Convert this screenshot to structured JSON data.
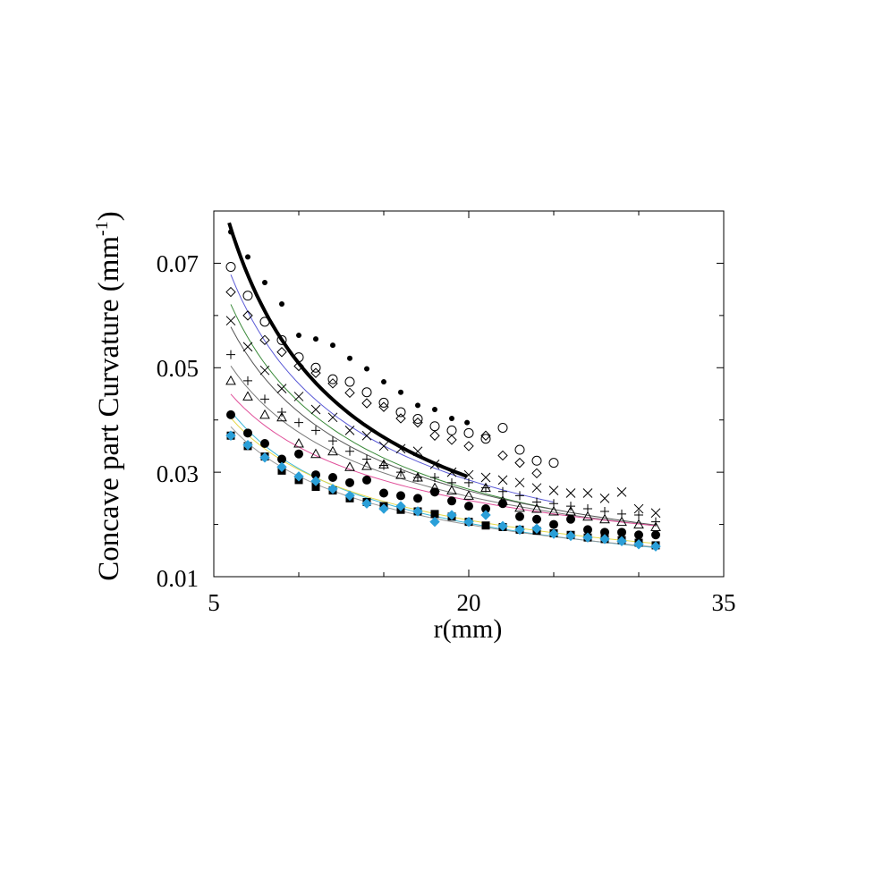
{
  "chart_data": {
    "type": "scatter",
    "title": "",
    "xlabel": "r(mm)",
    "ylabel_main": "Concave part Curvature (mm",
    "ylabel_sup": "-1",
    "ylabel_close": ")",
    "xlim": [
      5,
      35
    ],
    "ylim": [
      0.01,
      0.08
    ],
    "x_tick_labels": [
      "5",
      "20",
      "35"
    ],
    "y_tick_labels": [
      "0.01",
      "0.03",
      "0.05",
      "0.07"
    ],
    "x_ticks_major": [
      5,
      20,
      35
    ],
    "x_ticks_minor": [
      10,
      15,
      25,
      30
    ],
    "y_ticks_major": [
      0.01,
      0.03,
      0.05,
      0.07
    ],
    "y_ticks_minor": [
      0.02,
      0.04,
      0.06
    ],
    "grid": false,
    "legend": "none",
    "series": [
      {
        "marker": "dot",
        "color": "#000000",
        "fit_color": "#000000",
        "fit_width": 4,
        "x": [
          6.0,
          7.0,
          8.0,
          9.0,
          10.0,
          11.0,
          12.0,
          13.0,
          14.0,
          15.0,
          16.0,
          17.0,
          18.0,
          19.0,
          19.9
        ],
        "y": [
          0.076,
          0.0712,
          0.0663,
          0.0622,
          0.0562,
          0.0555,
          0.0543,
          0.0518,
          0.0498,
          0.0473,
          0.0453,
          0.0428,
          0.042,
          0.0403,
          0.0395
        ],
        "fit_x": [
          5.9,
          19.9
        ],
        "fit_a": 0.3245,
        "fit_b": -0.805
      },
      {
        "marker": "circle",
        "color": "#000000",
        "fit_color": "#5b5bd6",
        "fit_width": 1,
        "x": [
          6.0,
          7.0,
          8.0,
          9.0,
          10.0,
          11.0,
          12.0,
          13.0,
          14.0,
          15.0,
          16.0,
          17.0,
          18.0,
          19.0,
          20.0,
          21.0,
          22.0,
          23.0,
          24.0,
          25.0
        ],
        "y": [
          0.0693,
          0.0638,
          0.0588,
          0.0553,
          0.052,
          0.05,
          0.0478,
          0.0473,
          0.0453,
          0.0433,
          0.0415,
          0.0402,
          0.0388,
          0.038,
          0.0375,
          0.0364,
          0.0385,
          0.0343,
          0.0322,
          0.0318
        ],
        "fit_x": [
          6.0,
          25.0
        ],
        "fit_a": 0.2464,
        "fit_b": -0.72
      },
      {
        "marker": "diamond",
        "color": "#000000",
        "fit_color": "#3a8a3a",
        "fit_width": 1,
        "x": [
          6.0,
          7.0,
          8.0,
          9.0,
          10.0,
          11.0,
          12.0,
          13.0,
          14.0,
          15.0,
          16.0,
          17.0,
          18.0,
          19.0,
          20.0,
          21.0,
          22.0,
          23.0,
          24.0
        ],
        "y": [
          0.0645,
          0.06,
          0.0553,
          0.053,
          0.0503,
          0.049,
          0.047,
          0.0452,
          0.0432,
          0.0425,
          0.0403,
          0.0395,
          0.037,
          0.0362,
          0.035,
          0.037,
          0.0332,
          0.0318,
          0.0298
        ],
        "fit_x": [
          6.0,
          25.0
        ],
        "fit_a": 0.2178,
        "fit_b": -0.7
      },
      {
        "marker": "x",
        "color": "#000000",
        "fit_color": "#555555",
        "fit_width": 1,
        "x": [
          6.0,
          7.0,
          8.0,
          9.0,
          10.0,
          11.0,
          12.0,
          13.0,
          14.0,
          15.0,
          16.0,
          17.0,
          18.0,
          19.0,
          20.0,
          21.0,
          22.0,
          23.0,
          24.0,
          25.0,
          26.0,
          27.0,
          28.0,
          29.0,
          30.0,
          31.0
        ],
        "y": [
          0.059,
          0.054,
          0.0495,
          0.046,
          0.0445,
          0.042,
          0.0405,
          0.038,
          0.037,
          0.035,
          0.0345,
          0.034,
          0.0315,
          0.03,
          0.0295,
          0.029,
          0.0285,
          0.028,
          0.027,
          0.0265,
          0.026,
          0.026,
          0.025,
          0.0262,
          0.023,
          0.0222
        ],
        "fit_x": [
          6.0,
          31.0
        ],
        "fit_a": 0.1853,
        "fit_b": -0.65
      },
      {
        "marker": "plus",
        "color": "#000000",
        "fit_color": "#7a7a7a",
        "fit_width": 1,
        "x": [
          6.0,
          7.0,
          8.0,
          9.0,
          10.0,
          11.0,
          12.0,
          13.0,
          14.0,
          15.0,
          16.0,
          17.0,
          18.0,
          19.0,
          20.0,
          21.0,
          22.0,
          23.0,
          24.0,
          25.0,
          26.0,
          27.0,
          28.0,
          29.0,
          30.0,
          31.0
        ],
        "y": [
          0.0525,
          0.0475,
          0.044,
          0.0415,
          0.0395,
          0.038,
          0.036,
          0.034,
          0.0325,
          0.0313,
          0.03,
          0.029,
          0.029,
          0.028,
          0.028,
          0.027,
          0.0263,
          0.0255,
          0.0243,
          0.024,
          0.0235,
          0.023,
          0.0225,
          0.022,
          0.0218,
          0.0205
        ],
        "fit_x": [
          6.0,
          31.0
        ],
        "fit_a": 0.1398,
        "fit_b": -0.57
      },
      {
        "marker": "triangle",
        "color": "#000000",
        "fit_color": "#e0509a",
        "fit_width": 1,
        "x": [
          6.0,
          7.0,
          8.0,
          9.0,
          10.0,
          11.0,
          12.0,
          13.0,
          14.0,
          15.0,
          16.0,
          17.0,
          18.0,
          19.0,
          20.0,
          21.0,
          22.0,
          23.0,
          24.0,
          25.0,
          26.0,
          27.0,
          28.0,
          29.0,
          30.0,
          31.0
        ],
        "y": [
          0.0475,
          0.0445,
          0.041,
          0.0405,
          0.0355,
          0.0335,
          0.034,
          0.031,
          0.0312,
          0.0315,
          0.0295,
          0.029,
          0.027,
          0.0265,
          0.0255,
          0.027,
          0.0245,
          0.0232,
          0.023,
          0.0225,
          0.0225,
          0.0215,
          0.021,
          0.0205,
          0.02,
          0.0195
        ],
        "fit_x": [
          6.0,
          31.0
        ],
        "fit_a": 0.1101,
        "fit_b": -0.5
      },
      {
        "marker": "bigdot",
        "color": "#000000",
        "fit_color": "#40b8d8",
        "fit_width": 1,
        "x": [
          6.0,
          7.0,
          8.0,
          9.0,
          10.0,
          11.0,
          12.0,
          13.0,
          14.0,
          15.0,
          16.0,
          17.0,
          18.0,
          19.0,
          20.0,
          21.0,
          22.0,
          23.0,
          24.0,
          25.0,
          26.0,
          27.0,
          28.0,
          29.0,
          30.0,
          31.0
        ],
        "y": [
          0.041,
          0.0375,
          0.0355,
          0.0325,
          0.0335,
          0.0295,
          0.029,
          0.028,
          0.0285,
          0.026,
          0.0255,
          0.025,
          0.0262,
          0.0245,
          0.0235,
          0.023,
          0.024,
          0.0215,
          0.021,
          0.02,
          0.021,
          0.019,
          0.0185,
          0.0185,
          0.018,
          0.018
        ],
        "fit_x": [
          6.0,
          31.0
        ],
        "fit_a": 0.1222,
        "fit_b": -0.6
      },
      {
        "marker": "square",
        "color": "#000000",
        "fit_color": "#e6d84a",
        "fit_width": 1,
        "x": [
          6.0,
          7.0,
          8.0,
          9.0,
          10.0,
          11.0,
          12.0,
          13.0,
          14.0,
          15.0,
          16.0,
          17.0,
          18.0,
          19.0,
          20.0,
          21.0,
          22.0,
          23.0,
          24.0,
          25.0,
          26.0,
          27.0,
          28.0,
          29.0,
          30.0,
          31.0
        ],
        "y": [
          0.037,
          0.035,
          0.033,
          0.0303,
          0.0285,
          0.0272,
          0.0265,
          0.025,
          0.0243,
          0.0235,
          0.0228,
          0.0225,
          0.022,
          0.0215,
          0.0205,
          0.0198,
          0.0195,
          0.019,
          0.0188,
          0.0183,
          0.018,
          0.0175,
          0.0172,
          0.017,
          0.0165,
          0.016
        ],
        "fit_x": [
          6.0,
          31.0
        ],
        "fit_a": 0.1082,
        "fit_b": -0.55
      },
      {
        "marker": "cyan-diamond",
        "color": "#2a9fd8",
        "fit_color": "#999999",
        "fit_width": 1,
        "x": [
          6.0,
          7.0,
          8.0,
          9.0,
          10.0,
          11.0,
          12.0,
          13.0,
          14.0,
          15.0,
          16.0,
          17.0,
          18.0,
          19.0,
          20.0,
          21.0,
          22.0,
          23.0,
          24.0,
          25.0,
          26.0,
          27.0,
          28.0,
          29.0,
          30.0,
          31.0
        ],
        "y": [
          0.037,
          0.0352,
          0.0328,
          0.031,
          0.0292,
          0.0283,
          0.0268,
          0.0255,
          0.024,
          0.023,
          0.0235,
          0.0225,
          0.0205,
          0.0218,
          0.0205,
          0.0218,
          0.0197,
          0.019,
          0.0192,
          0.0182,
          0.0178,
          0.0175,
          0.0172,
          0.0168,
          0.0162,
          0.0158
        ],
        "fit_x": [
          6.0,
          31.0
        ],
        "fit_a": 0.1037,
        "fit_b": -0.55
      }
    ]
  }
}
